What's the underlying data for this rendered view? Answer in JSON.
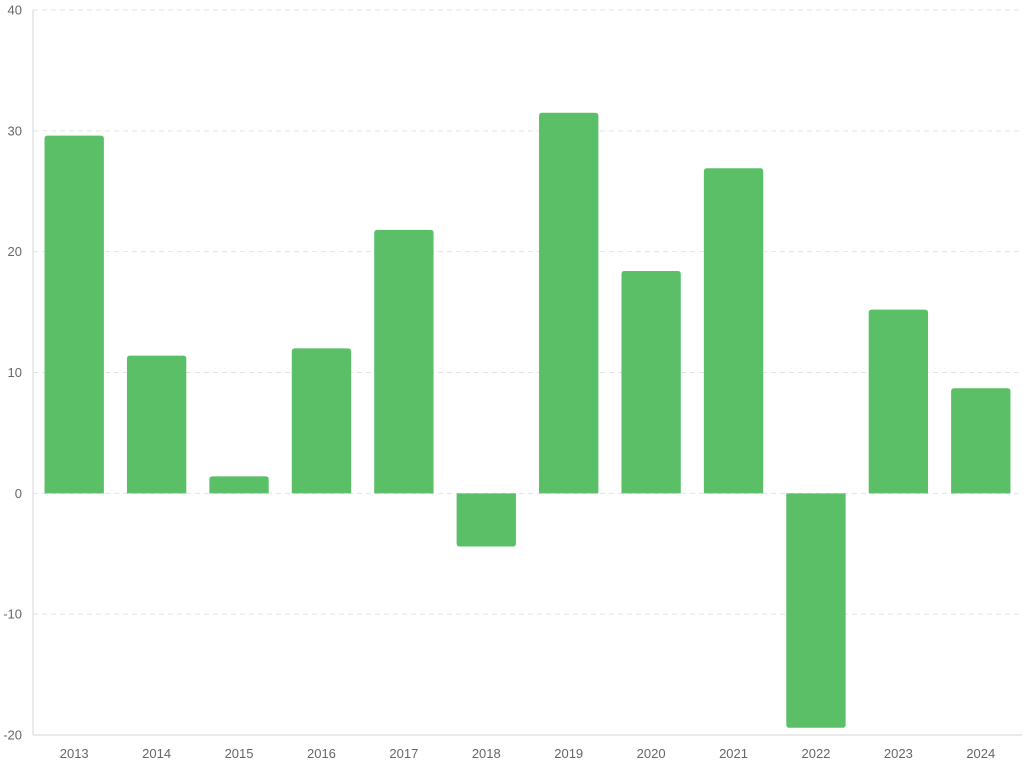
{
  "chart_data": {
    "type": "bar",
    "title": "",
    "xlabel": "",
    "ylabel": "",
    "categories": [
      "2013",
      "2014",
      "2015",
      "2016",
      "2017",
      "2018",
      "2019",
      "2020",
      "2021",
      "2022",
      "2023",
      "2024"
    ],
    "values": [
      29.6,
      11.4,
      1.4,
      12.0,
      21.8,
      -4.4,
      31.5,
      18.4,
      26.9,
      -19.4,
      15.2,
      8.7
    ],
    "ylim": [
      -20,
      40
    ],
    "yticks": [
      -20,
      -10,
      0,
      10,
      20,
      30,
      40
    ],
    "grid": true,
    "legend": "none",
    "colors": {
      "bar": "#5abf66",
      "grid": "#e3e3e3",
      "axis": "#d6d6d6",
      "tick_text": "#666666"
    }
  }
}
